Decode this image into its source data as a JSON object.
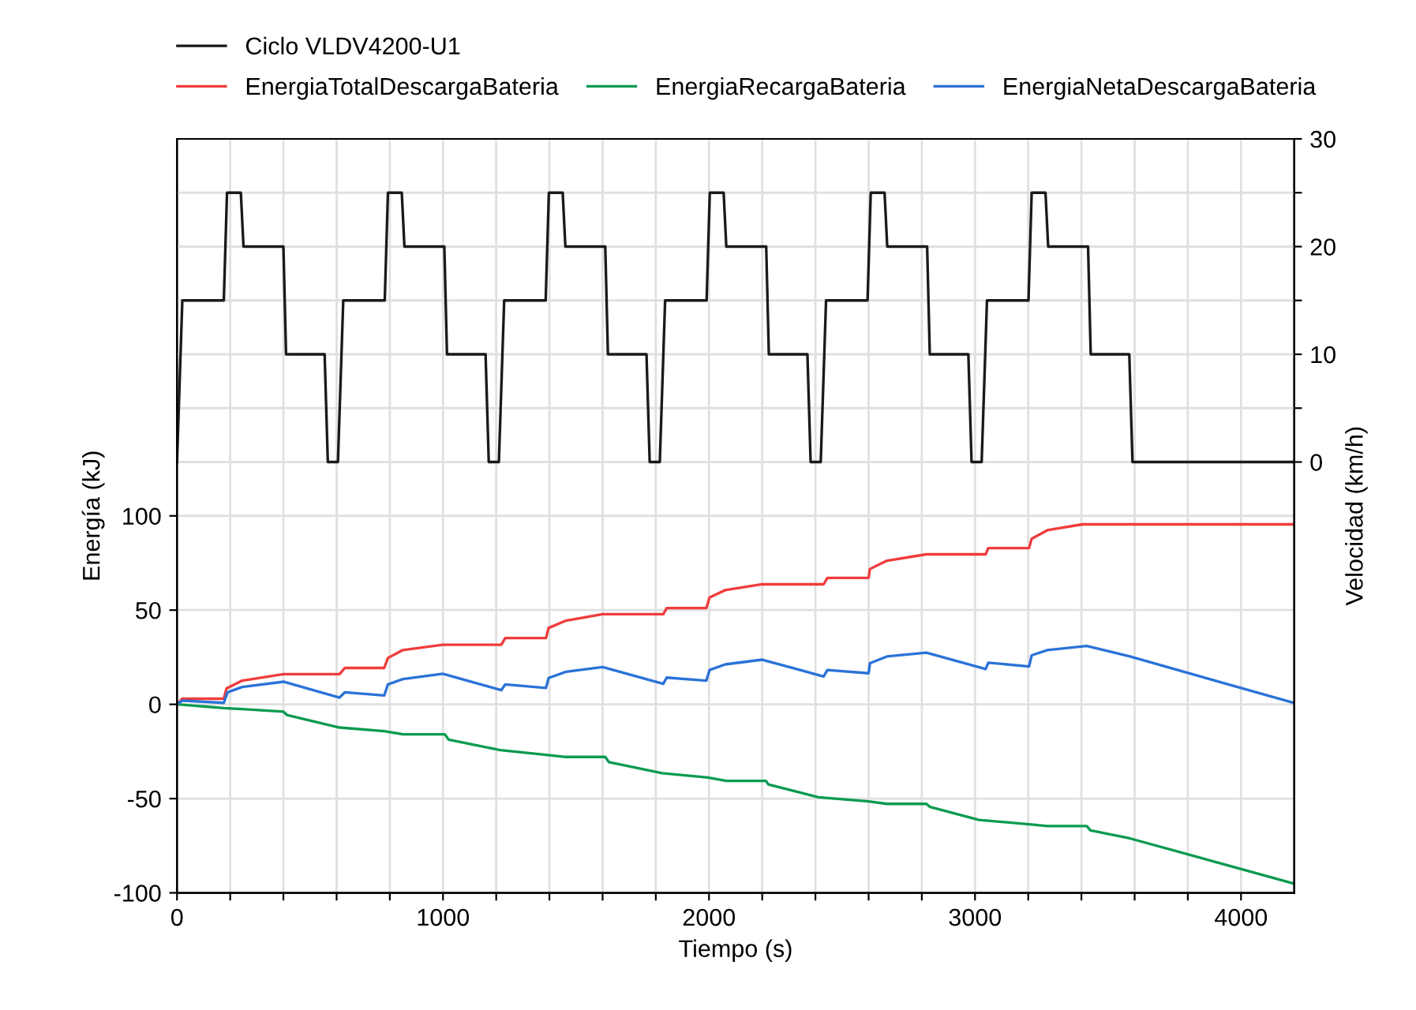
{
  "chart_data": {
    "type": "line",
    "xlabel": "Tiempo (s)",
    "ylabel": "Energía (kJ)",
    "y2label": "Velocidad (km/h)",
    "xlim": [
      0,
      4200
    ],
    "xticks": [
      0,
      {
        "value": 200,
        "label": null
      },
      {
        "value": 400,
        "label": null
      },
      {
        "value": 600,
        "label": null
      },
      {
        "value": 800,
        "label": null
      },
      1000,
      {
        "value": 1200,
        "label": null
      },
      {
        "value": 1400,
        "label": null
      },
      {
        "value": 1600,
        "label": null
      },
      {
        "value": 1800,
        "label": null
      },
      2000,
      {
        "value": 2200,
        "label": null
      },
      {
        "value": 2400,
        "label": null
      },
      {
        "value": 2600,
        "label": null
      },
      {
        "value": 2800,
        "label": null
      },
      3000,
      {
        "value": 3200,
        "label": null
      },
      {
        "value": 3400,
        "label": null
      },
      {
        "value": 3600,
        "label": null
      },
      {
        "value": 3800,
        "label": null
      },
      4000
    ],
    "ylim": [
      -100,
      300
    ],
    "yticks": [
      -100,
      -50,
      0,
      50,
      100
    ],
    "y2lim": [
      -40,
      30
    ],
    "y2ticks": [
      0,
      {
        "value": 5,
        "label": null
      },
      10,
      {
        "value": 15,
        "label": null
      },
      20,
      {
        "value": 25,
        "label": null
      },
      30
    ],
    "grid": true,
    "legend": "top",
    "line_style": "solid",
    "marker": "none",
    "series": [
      {
        "name": "Ciclo VLDV4200-U1",
        "color": "#1a1a1a",
        "axis": "y2",
        "x": [
          0,
          20,
          176,
          188,
          240,
          250,
          400,
          410,
          555,
          567,
          605,
          625,
          781,
          793,
          845,
          855,
          1005,
          1015,
          1160,
          1172,
          1210,
          1230,
          1386,
          1398,
          1450,
          1460,
          1610,
          1620,
          1765,
          1777,
          1815,
          1835,
          1991,
          2003,
          2055,
          2065,
          2215,
          2225,
          2370,
          2382,
          2420,
          2440,
          2596,
          2608,
          2660,
          2670,
          2820,
          2830,
          2975,
          2987,
          3025,
          3045,
          3201,
          3213,
          3265,
          3275,
          3425,
          3435,
          3580,
          3592,
          4200
        ],
        "values": [
          0,
          15,
          15,
          25,
          25,
          20,
          20,
          10,
          10,
          0,
          0,
          15,
          15,
          25,
          25,
          20,
          20,
          10,
          10,
          0,
          0,
          15,
          15,
          25,
          25,
          20,
          20,
          10,
          10,
          0,
          0,
          15,
          15,
          25,
          25,
          20,
          20,
          10,
          10,
          0,
          0,
          15,
          15,
          25,
          25,
          20,
          20,
          10,
          10,
          0,
          0,
          15,
          15,
          25,
          25,
          20,
          20,
          10,
          10,
          0,
          0
        ]
      },
      {
        "name": "EnergiaTotalDescargaBateria",
        "color": "#f03c3c",
        "x": [
          0,
          20,
          176,
          186,
          245,
          400,
          611,
          631,
          779,
          793,
          849,
          999,
          1219,
          1234,
          1387,
          1397,
          1462,
          1600,
          1828,
          1841,
          1990,
          2002,
          2061,
          2200,
          2431,
          2445,
          2600,
          2605,
          2669,
          2817,
          3040,
          3050,
          3203,
          3213,
          3272,
          3404,
          4200
        ],
        "values": [
          0,
          3,
          3,
          8.4,
          12.6,
          16,
          16,
          19.3,
          19.3,
          24.6,
          28.8,
          31.6,
          31.6,
          35.2,
          35.2,
          40.5,
          44.4,
          47.8,
          47.8,
          51.1,
          51.1,
          56.7,
          60.6,
          63.7,
          63.7,
          67.1,
          67.1,
          71.8,
          76.2,
          79.6,
          79.6,
          82.9,
          82.9,
          87.9,
          92.4,
          95.5,
          95.5
        ]
      },
      {
        "name": "EnergiaRecargaBateria",
        "color": "#0a9a50",
        "x": [
          0,
          176,
          245,
          400,
          413,
          611,
          779,
          849,
          1007,
          1021,
          1215,
          1387,
          1462,
          1610,
          1624,
          1824,
          1996,
          2065,
          2214,
          2223,
          2411,
          2600,
          2669,
          2817,
          2831,
          3015,
          3203,
          3272,
          3420,
          3434,
          3582,
          4198
        ],
        "values": [
          0,
          -2,
          -2.5,
          -3.9,
          -5.6,
          -12.3,
          -14.2,
          -15.9,
          -15.9,
          -18.7,
          -24.3,
          -26.8,
          -27.9,
          -27.9,
          -30.7,
          -36.5,
          -38.8,
          -40.6,
          -40.6,
          -42.5,
          -49.3,
          -51.5,
          -52.8,
          -52.8,
          -54.4,
          -61.3,
          -63.6,
          -64.6,
          -64.6,
          -66.9,
          -71.1,
          -95.1
        ]
      },
      {
        "name": "EnergiaNetaDescargaBateria",
        "color": "#2a72d8",
        "x": [
          0,
          20,
          176,
          190,
          245,
          400,
          611,
          631,
          779,
          793,
          849,
          999,
          1219,
          1234,
          1387,
          1397,
          1462,
          1600,
          1828,
          1841,
          1990,
          2002,
          2061,
          2200,
          2431,
          2445,
          2600,
          2605,
          2669,
          2817,
          3040,
          3050,
          3203,
          3213,
          3272,
          3420,
          3582,
          4198
        ],
        "values": [
          0,
          2,
          0.8,
          6.4,
          9.2,
          12,
          3.6,
          6.4,
          4.7,
          10.6,
          13.4,
          16.2,
          7.5,
          10.6,
          8.7,
          14,
          17.3,
          19.8,
          10.9,
          14.2,
          12.6,
          18.2,
          21.2,
          23.7,
          14.8,
          18.2,
          16.5,
          21.8,
          25.4,
          27.4,
          18.7,
          22.1,
          20.1,
          26,
          28.8,
          31,
          25.4,
          0.8
        ]
      }
    ]
  }
}
